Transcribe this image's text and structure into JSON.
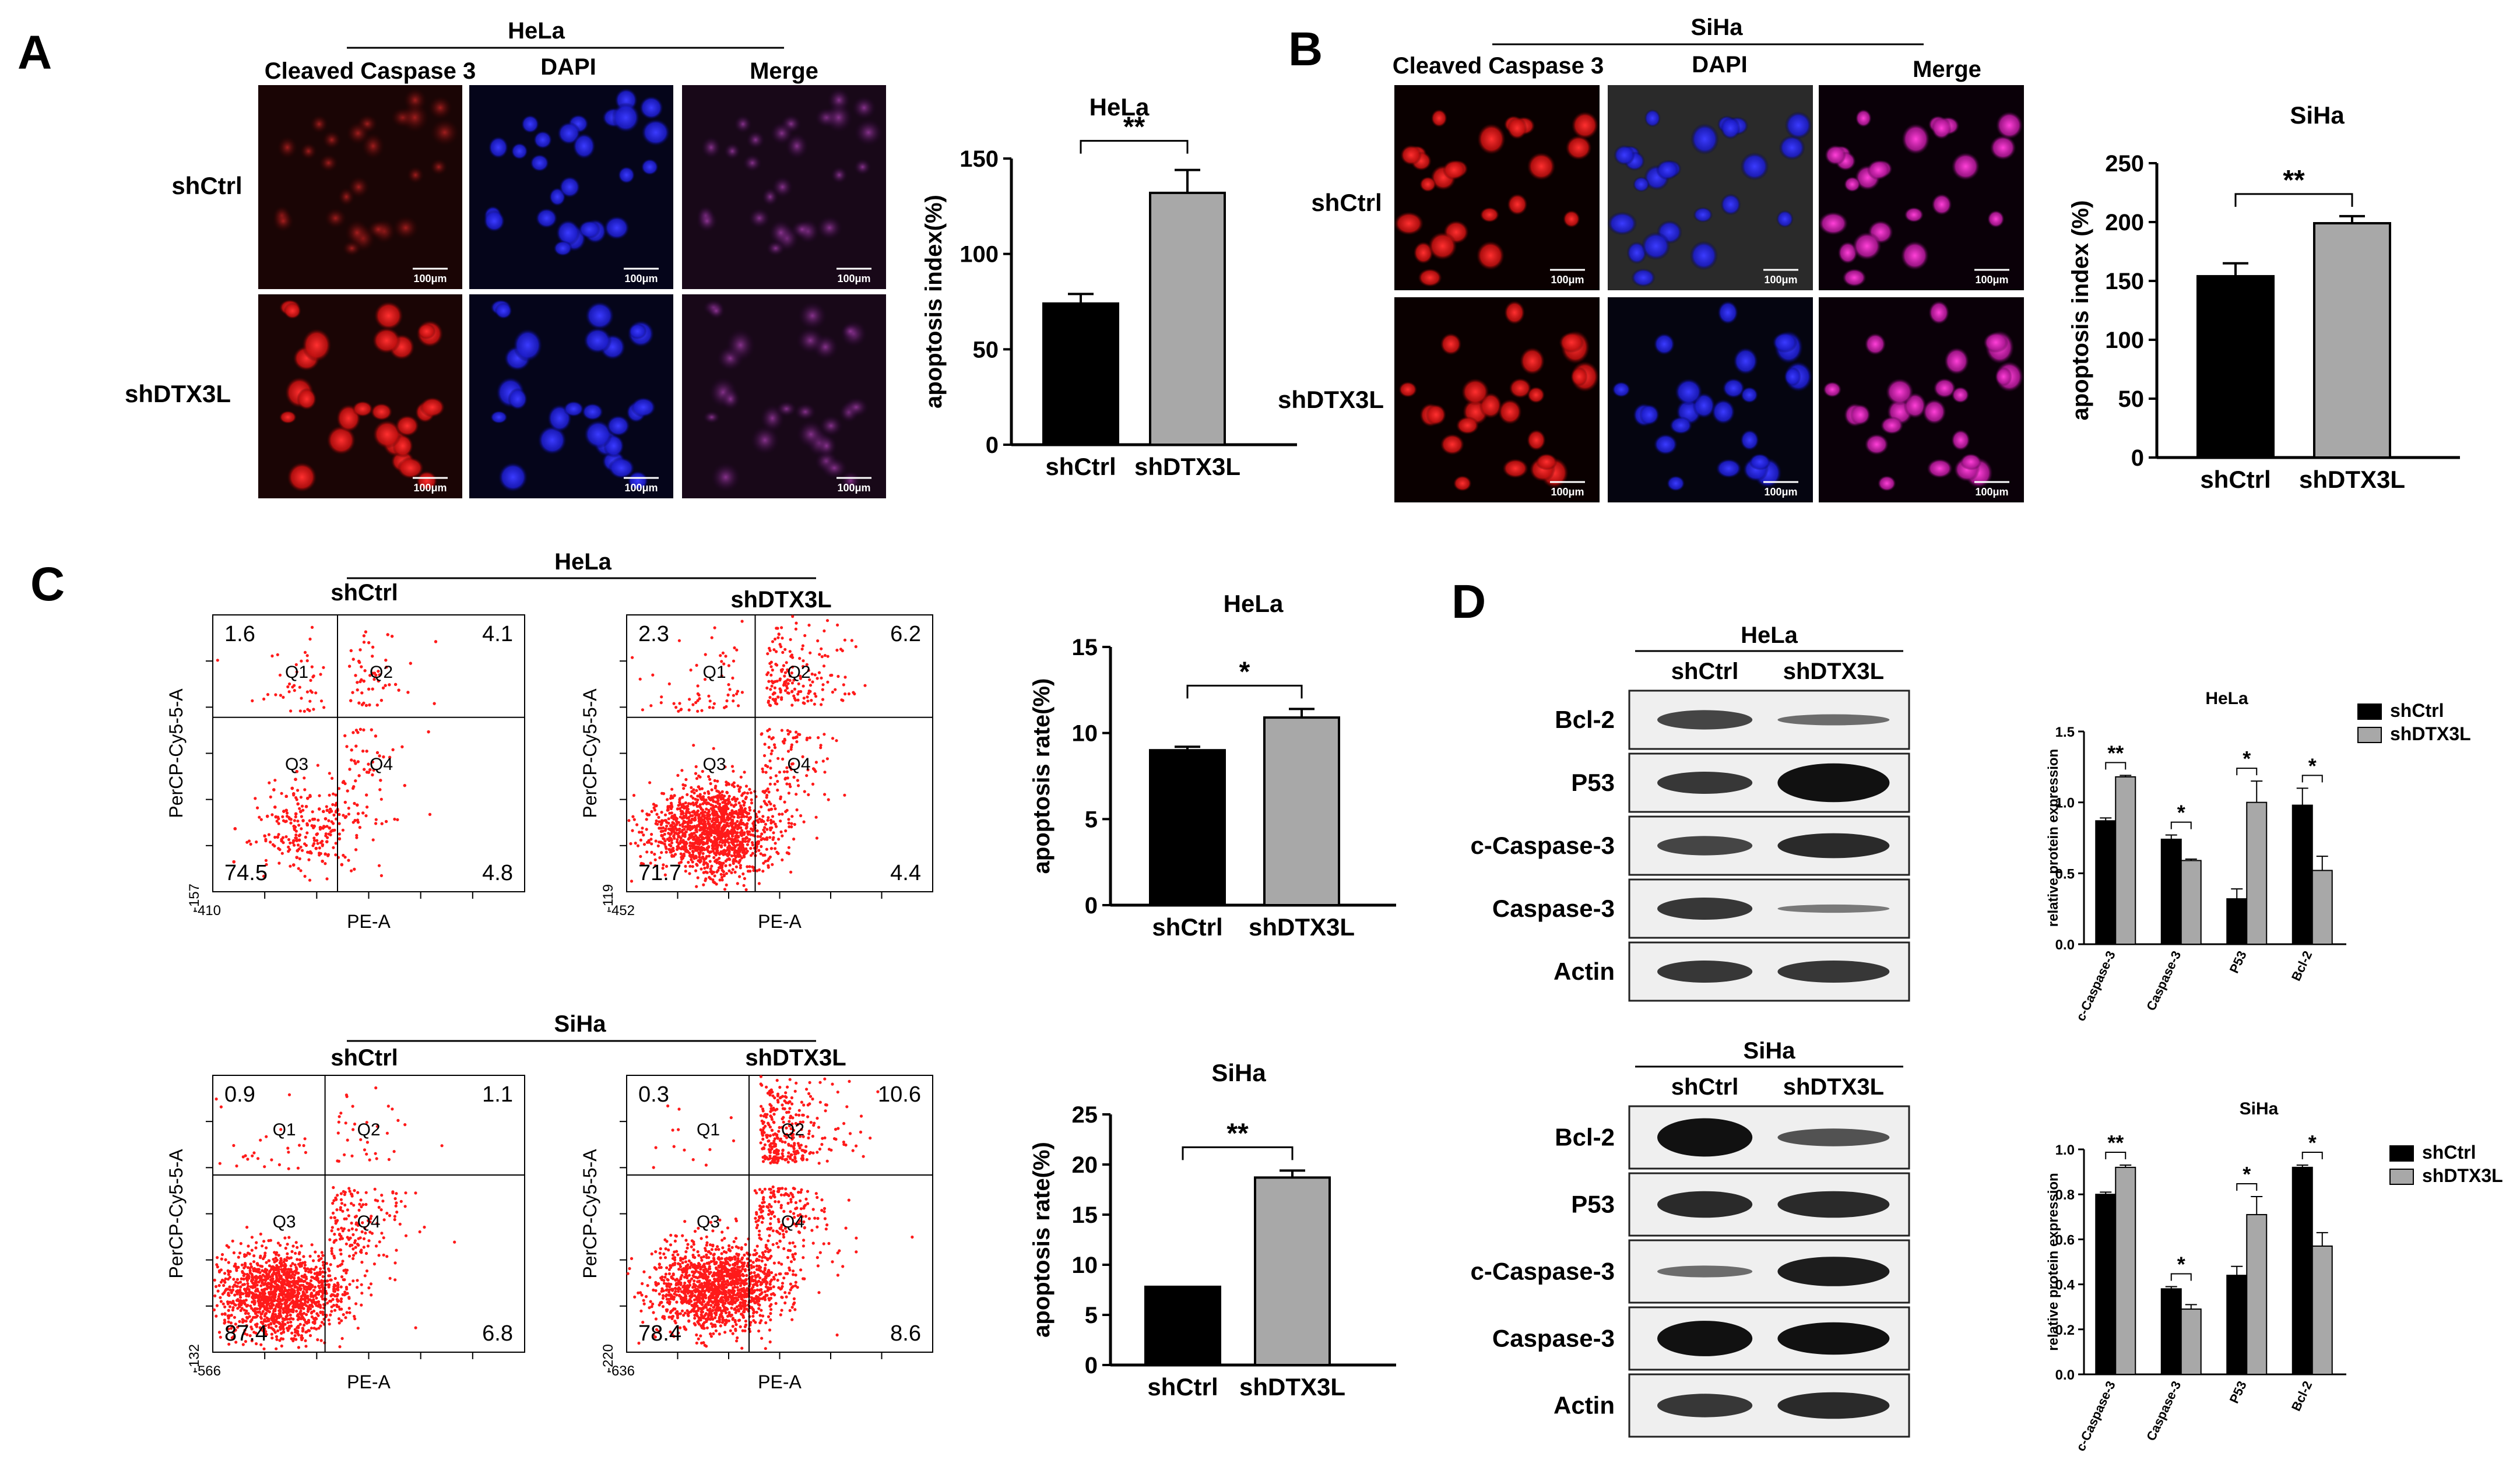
{
  "panels": {
    "A": {
      "letter": "A",
      "cell_line": "HeLa",
      "columns": [
        "Cleaved Caspase 3",
        "DAPI",
        "Merge"
      ],
      "rows": [
        "shCtrl",
        "shDTX3L"
      ],
      "scale_bar": "100μm",
      "chart_data": {
        "type": "bar",
        "title": "HeLa",
        "ylabel": "apoptosis index(%)",
        "categories": [
          "shCtrl",
          "shDTX3L"
        ],
        "values": [
          74,
          132
        ],
        "errors": [
          5,
          12
        ],
        "ylim": [
          0,
          150
        ],
        "yticks": [
          "0",
          "50",
          "100",
          "150"
        ],
        "significance": "**",
        "bar_colors": [
          "#000000",
          "#a8a8a8"
        ]
      }
    },
    "B": {
      "letter": "B",
      "cell_line": "SiHa",
      "columns": [
        "Cleaved Caspase 3",
        "DAPI",
        "Merge"
      ],
      "rows": [
        "shCtrl",
        "shDTX3L"
      ],
      "scale_bar": "100μm",
      "chart_data": {
        "type": "bar",
        "title": "SiHa",
        "ylabel": "apoptosis index (%)",
        "categories": [
          "shCtrl",
          "shDTX3L"
        ],
        "values": [
          154,
          199
        ],
        "errors": [
          11,
          6
        ],
        "ylim": [
          0,
          250
        ],
        "yticks": [
          "0",
          "50",
          "100",
          "150",
          "200",
          "250"
        ],
        "significance": "**",
        "bar_colors": [
          "#000000",
          "#a8a8a8"
        ]
      }
    },
    "C": {
      "letter": "C",
      "flow": [
        {
          "cell_line": "HeLa",
          "left_title": "shCtrl",
          "right_title": "shDTX3L",
          "plots": [
            {
              "q1": "1.6",
              "q2": "4.1",
              "q3": "74.5",
              "q4": "4.8",
              "xmin": "-410",
              "ymin": "-157"
            },
            {
              "q1": "2.3",
              "q2": "6.2",
              "q3": "71.7",
              "q4": "4.4",
              "xmin": "-452",
              "ymin": "-119"
            }
          ]
        },
        {
          "cell_line": "SiHa",
          "left_title": "shCtrl",
          "right_title": "shDTX3L",
          "plots": [
            {
              "q1": "0.9",
              "q2": "1.1",
              "q3": "87.4",
              "q4": "6.8",
              "xmin": "-566",
              "ymin": "-132"
            },
            {
              "q1": "0.3",
              "q2": "10.6",
              "q3": "78.4",
              "q4": "8.6",
              "xmin": "-636",
              "ymin": "-220"
            }
          ]
        }
      ],
      "quadrant_names": [
        "Q1",
        "Q2",
        "Q3",
        "Q4"
      ],
      "x_axis_label": "PE-A",
      "y_axis_label": "PerCP-Cy5-5-A",
      "chart_data": [
        {
          "type": "bar",
          "title": "HeLa",
          "ylabel": "apoptosis rate(%)",
          "categories": [
            "shCtrl",
            "shDTX3L"
          ],
          "values": [
            9.0,
            10.9
          ],
          "errors": [
            0.2,
            0.5
          ],
          "ylim": [
            0,
            15
          ],
          "yticks": [
            "0",
            "5",
            "10",
            "15"
          ],
          "significance": "*",
          "bar_colors": [
            "#000000",
            "#a8a8a8"
          ]
        },
        {
          "type": "bar",
          "title": "SiHa",
          "ylabel": "apoptosis rate(%)",
          "categories": [
            "shCtrl",
            "shDTX3L"
          ],
          "values": [
            7.8,
            18.7
          ],
          "errors": [
            0,
            0.7
          ],
          "ylim": [
            0,
            25
          ],
          "yticks": [
            "0",
            "5",
            "10",
            "15",
            "20",
            "25"
          ],
          "significance": "**",
          "bar_colors": [
            "#000000",
            "#a8a8a8"
          ]
        }
      ]
    },
    "D": {
      "letter": "D",
      "blots": [
        {
          "cell_line": "HeLa",
          "lanes": [
            "shCtrl",
            "shDTX3L"
          ],
          "proteins": [
            "Bcl-2",
            "P53",
            "c-Caspase-3",
            "Caspase-3",
            "Actin"
          ]
        },
        {
          "cell_line": "SiHa",
          "lanes": [
            "shCtrl",
            "shDTX3L"
          ],
          "proteins": [
            "Bcl-2",
            "P53",
            "c-Caspase-3",
            "Caspase-3",
            "Actin"
          ]
        }
      ],
      "chart_data": [
        {
          "type": "bar",
          "title": "HeLa",
          "ylabel": "relative protein expression",
          "categories": [
            "c-Caspase-3",
            "Caspase-3",
            "P53",
            "Bcl-2"
          ],
          "series": [
            {
              "name": "shCtrl",
              "values": [
                0.87,
                0.74,
                0.32,
                0.98
              ],
              "errors": [
                0.02,
                0.03,
                0.07,
                0.12
              ],
              "color": "#000000"
            },
            {
              "name": "shDTX3L",
              "values": [
                1.18,
                0.59,
                1.0,
                0.52
              ],
              "errors": [
                0.01,
                0.01,
                0.15,
                0.1
              ],
              "color": "#a8a8a8"
            }
          ],
          "ylim": [
            0,
            1.5
          ],
          "yticks": [
            "0.0",
            "0.5",
            "1.0",
            "1.5"
          ],
          "significance": [
            "**",
            "*",
            "*",
            "*"
          ],
          "legend": "top-right"
        },
        {
          "type": "bar",
          "title": "SiHa",
          "ylabel": "relative protein expression",
          "categories": [
            "c-Caspase-3",
            "Caspase-3",
            "P53",
            "Bcl-2"
          ],
          "series": [
            {
              "name": "shCtrl",
              "values": [
                0.8,
                0.38,
                0.44,
                0.92
              ],
              "errors": [
                0.01,
                0.01,
                0.04,
                0.01
              ],
              "color": "#000000"
            },
            {
              "name": "shDTX3L",
              "values": [
                0.92,
                0.29,
                0.71,
                0.57
              ],
              "errors": [
                0.01,
                0.02,
                0.08,
                0.06
              ],
              "color": "#a8a8a8"
            }
          ],
          "ylim": [
            0,
            1.0
          ],
          "yticks": [
            "0.0",
            "0.2",
            "0.4",
            "0.6",
            "0.8",
            "1.0"
          ],
          "significance": [
            "**",
            "*",
            "*",
            "*"
          ],
          "legend": "top-right"
        }
      ]
    }
  }
}
